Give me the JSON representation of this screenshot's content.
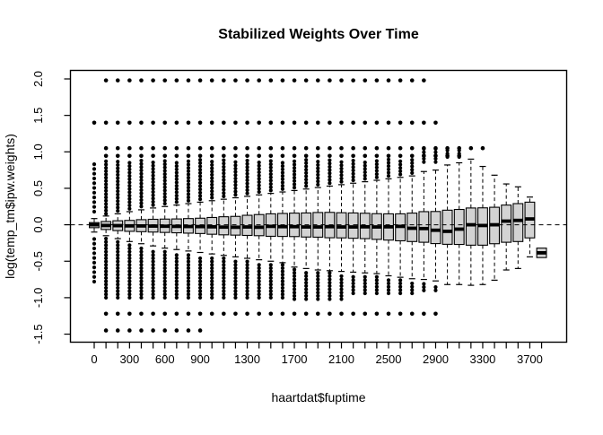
{
  "window": {
    "background": "#ffffff"
  },
  "chart_data": {
    "type": "boxplot",
    "title": "Stabilized Weights Over Time",
    "xlabel": "haartdat$fuptime",
    "ylabel": "log(temp_tm$ipw.weights)",
    "ylim": [
      -1.61,
      2.12
    ],
    "xlim": [
      -200,
      4000
    ],
    "grid": false,
    "box_fill": "#d3d3d3",
    "stroke_color": "#000000",
    "reference_line": {
      "y": 0.0,
      "style": "dashed"
    },
    "y_ticks": [
      {
        "v": 2.0,
        "label": "2.0"
      },
      {
        "v": 1.5,
        "label": "1.5"
      },
      {
        "v": 1.0,
        "label": "1.0"
      },
      {
        "v": 0.5,
        "label": "0.5"
      },
      {
        "v": 0.0,
        "label": "0.0"
      },
      {
        "v": -0.5,
        "label": "-0.5"
      },
      {
        "v": -1.0,
        "label": "-1.0"
      },
      {
        "v": -1.5,
        "label": "-1.5"
      }
    ],
    "x_tick_min": 0,
    "x_tick_max": 3800,
    "x_tick_step": 100,
    "x_labeled_ticks": [
      {
        "t": 0,
        "label": "0"
      },
      {
        "t": 300,
        "label": "300"
      },
      {
        "t": 600,
        "label": "600"
      },
      {
        "t": 900,
        "label": "900"
      },
      {
        "t": 1300,
        "label": "1300"
      },
      {
        "t": 1700,
        "label": "1700"
      },
      {
        "t": 2100,
        "label": "2100"
      },
      {
        "t": 2500,
        "label": "2500"
      },
      {
        "t": 2900,
        "label": "2900"
      },
      {
        "t": 3300,
        "label": "3300"
      },
      {
        "t": 3700,
        "label": "3700"
      }
    ],
    "boxes": [
      {
        "t": 0,
        "q1": -0.04,
        "med": 0.0,
        "q3": 0.03,
        "wlo": -0.1,
        "whi": 0.085,
        "above": [
          0.18,
          0.83
        ],
        "below": [
          -0.78,
          -0.17
        ],
        "step": 0.065
      },
      {
        "t": 100,
        "q1": -0.065,
        "med": -0.01,
        "q3": 0.045,
        "wlo": -0.15,
        "whi": 0.12,
        "above": [
          0.15,
          0.89
        ],
        "below": [
          -1.0,
          -0.19
        ]
      },
      {
        "t": 200,
        "q1": -0.08,
        "med": -0.012,
        "q3": 0.055,
        "wlo": -0.19,
        "whi": 0.15,
        "above": [
          0.19,
          0.89
        ],
        "below": [
          -1.0,
          -0.23
        ]
      },
      {
        "t": 300,
        "q1": -0.09,
        "med": -0.015,
        "q3": 0.06,
        "wlo": -0.23,
        "whi": 0.18,
        "above": [
          0.22,
          0.89
        ],
        "below": [
          -1.0,
          -0.27
        ]
      },
      {
        "t": 400,
        "q1": -0.095,
        "med": -0.016,
        "q3": 0.07,
        "wlo": -0.26,
        "whi": 0.205,
        "above": [
          0.25,
          0.89
        ],
        "below": [
          -1.0,
          -0.3
        ]
      },
      {
        "t": 500,
        "q1": -0.1,
        "med": -0.018,
        "q3": 0.075,
        "wlo": -0.29,
        "whi": 0.23,
        "above": [
          0.27,
          0.89
        ],
        "below": [
          -1.0,
          -0.33
        ]
      },
      {
        "t": 600,
        "q1": -0.105,
        "med": -0.02,
        "q3": 0.078,
        "wlo": -0.32,
        "whi": 0.25,
        "above": [
          0.29,
          0.89
        ],
        "below": [
          -1.0,
          -0.36
        ]
      },
      {
        "t": 700,
        "q1": -0.11,
        "med": -0.022,
        "q3": 0.08,
        "wlo": -0.34,
        "whi": 0.27,
        "above": [
          0.31,
          0.89
        ],
        "below": [
          -1.0,
          -0.38
        ]
      },
      {
        "t": 800,
        "q1": -0.115,
        "med": -0.024,
        "q3": 0.085,
        "wlo": -0.36,
        "whi": 0.29,
        "above": [
          0.33,
          0.89
        ],
        "below": [
          -1.0,
          -0.4
        ]
      },
      {
        "t": 900,
        "q1": -0.12,
        "med": -0.025,
        "q3": 0.09,
        "wlo": -0.38,
        "whi": 0.31,
        "above": [
          0.35,
          0.89
        ],
        "below": [
          -1.0,
          -0.42
        ]
      },
      {
        "t": 1000,
        "q1": -0.13,
        "med": -0.028,
        "q3": 0.1,
        "wlo": -0.4,
        "whi": 0.33,
        "above": [
          0.37,
          0.89
        ],
        "below": [
          -1.0,
          -0.44
        ]
      },
      {
        "t": 1100,
        "q1": -0.138,
        "med": -0.032,
        "q3": 0.11,
        "wlo": -0.42,
        "whi": 0.35,
        "above": [
          0.39,
          0.89
        ],
        "below": [
          -1.0,
          -0.46
        ]
      },
      {
        "t": 1200,
        "q1": -0.142,
        "med": -0.034,
        "q3": 0.115,
        "wlo": -0.44,
        "whi": 0.37,
        "above": [
          0.41,
          0.89
        ],
        "below": [
          -1.0,
          -0.48
        ]
      },
      {
        "t": 1300,
        "q1": -0.146,
        "med": -0.03,
        "q3": 0.13,
        "wlo": -0.46,
        "whi": 0.39,
        "above": [
          0.43,
          0.89
        ],
        "below": [
          -1.0,
          -0.5
        ]
      },
      {
        "t": 1400,
        "q1": -0.15,
        "med": -0.034,
        "q3": 0.14,
        "wlo": -0.48,
        "whi": 0.41,
        "above": [
          0.45,
          0.89
        ],
        "below": [
          -1.0,
          -0.52
        ]
      },
      {
        "t": 1500,
        "q1": -0.158,
        "med": -0.022,
        "q3": 0.15,
        "wlo": -0.5,
        "whi": 0.43,
        "above": [
          0.47,
          0.89
        ],
        "below": [
          -1.0,
          -0.54
        ]
      },
      {
        "t": 1600,
        "q1": -0.16,
        "med": -0.026,
        "q3": 0.155,
        "wlo": -0.52,
        "whi": 0.45,
        "above": [
          0.49,
          0.89
        ],
        "below": [
          -1.0,
          -0.55
        ]
      },
      {
        "t": 1700,
        "q1": -0.162,
        "med": -0.026,
        "q3": 0.16,
        "wlo": -0.58,
        "whi": 0.47,
        "above": [
          0.51,
          0.89
        ],
        "below": [
          -1.02,
          -0.61
        ]
      },
      {
        "t": 1800,
        "q1": -0.168,
        "med": -0.03,
        "q3": 0.162,
        "wlo": -0.6,
        "whi": 0.49,
        "above": [
          0.53,
          0.89
        ],
        "below": [
          -1.02,
          -0.63
        ]
      },
      {
        "t": 1900,
        "q1": -0.17,
        "med": -0.03,
        "q3": 0.168,
        "wlo": -0.62,
        "whi": 0.51,
        "above": [
          0.55,
          0.89
        ],
        "below": [
          -1.02,
          -0.65
        ]
      },
      {
        "t": 2000,
        "q1": -0.178,
        "med": -0.026,
        "q3": 0.17,
        "wlo": -0.63,
        "whi": 0.53,
        "above": [
          0.57,
          0.89
        ],
        "below": [
          -1.02,
          -0.66
        ]
      },
      {
        "t": 2100,
        "q1": -0.18,
        "med": -0.03,
        "q3": 0.165,
        "wlo": -0.64,
        "whi": 0.55,
        "above": [
          0.59,
          0.89
        ],
        "below": [
          -1.02,
          -0.67
        ]
      },
      {
        "t": 2200,
        "q1": -0.185,
        "med": -0.03,
        "q3": 0.162,
        "wlo": -0.65,
        "whi": 0.57,
        "above": [
          0.61,
          0.89
        ],
        "below": [
          -0.94,
          -0.68
        ]
      },
      {
        "t": 2300,
        "q1": -0.19,
        "med": -0.028,
        "q3": 0.158,
        "wlo": -0.66,
        "whi": 0.59,
        "above": [
          0.63,
          0.89
        ],
        "below": [
          -0.94,
          -0.69
        ]
      },
      {
        "t": 2400,
        "q1": -0.2,
        "med": -0.03,
        "q3": 0.152,
        "wlo": -0.67,
        "whi": 0.61,
        "above": [
          0.65,
          0.89
        ],
        "below": [
          -0.94,
          -0.7
        ]
      },
      {
        "t": 2500,
        "q1": -0.21,
        "med": -0.028,
        "q3": 0.15,
        "wlo": -0.7,
        "whi": 0.63,
        "above": [
          0.67,
          0.9
        ],
        "below": [
          -0.94,
          -0.73
        ]
      },
      {
        "t": 2600,
        "q1": -0.22,
        "med": -0.022,
        "q3": 0.15,
        "wlo": -0.72,
        "whi": 0.65,
        "above": [
          0.69,
          0.91
        ],
        "below": [
          -0.94,
          -0.75
        ]
      },
      {
        "t": 2700,
        "q1": -0.23,
        "med": -0.048,
        "q3": 0.16,
        "wlo": -0.74,
        "whi": 0.67,
        "above": [
          0.71,
          0.92
        ],
        "below": [
          -0.94,
          -0.77
        ]
      },
      {
        "t": 2800,
        "q1": -0.24,
        "med": -0.052,
        "q3": 0.18,
        "wlo": -0.75,
        "whi": 0.73,
        "above": [
          0.86,
          1.04
        ],
        "below": [
          -0.9,
          -0.8
        ]
      },
      {
        "t": 2900,
        "q1": -0.258,
        "med": -0.075,
        "q3": 0.182,
        "wlo": -0.77,
        "whi": 0.75,
        "above": [
          0.86,
          1.04
        ],
        "below": [
          -0.9,
          -0.82
        ]
      },
      {
        "t": 3000,
        "q1": -0.268,
        "med": -0.09,
        "q3": 0.2,
        "wlo": -0.82,
        "whi": 0.82,
        "above": [
          0.93,
          1.02
        ],
        "below": null
      },
      {
        "t": 3100,
        "q1": -0.27,
        "med": -0.06,
        "q3": 0.21,
        "wlo": -0.82,
        "whi": 0.85,
        "above": [
          0.93,
          1.02
        ],
        "below": null
      },
      {
        "t": 3200,
        "q1": -0.28,
        "med": 0.0,
        "q3": 0.23,
        "wlo": -0.83,
        "whi": 0.9,
        "above": null,
        "below": null
      },
      {
        "t": 3300,
        "q1": -0.28,
        "med": -0.01,
        "q3": 0.232,
        "wlo": -0.82,
        "whi": 0.8,
        "above": null,
        "below": null
      },
      {
        "t": 3400,
        "q1": -0.26,
        "med": 0.0,
        "q3": 0.24,
        "wlo": -0.76,
        "whi": 0.68,
        "above": null,
        "below": null
      },
      {
        "t": 3500,
        "q1": -0.24,
        "med": 0.05,
        "q3": 0.27,
        "wlo": -0.62,
        "whi": 0.56,
        "above": null,
        "below": null
      },
      {
        "t": 3600,
        "q1": -0.23,
        "med": 0.06,
        "q3": 0.29,
        "wlo": -0.6,
        "whi": 0.52,
        "above": null,
        "below": null
      },
      {
        "t": 3700,
        "q1": -0.18,
        "med": 0.08,
        "q3": 0.31,
        "wlo": -0.44,
        "whi": 0.38,
        "above": null,
        "below": null
      },
      {
        "t": 3800,
        "q1": -0.45,
        "med": -0.385,
        "q3": -0.32,
        "wlo": null,
        "whi": null,
        "above": null,
        "below": null
      }
    ],
    "outlier_rows": [
      {
        "v": 1.98,
        "from": 100,
        "to": 2800
      },
      {
        "v": 1.4,
        "from": 0,
        "to": 2900
      },
      {
        "v": 1.05,
        "from": 100,
        "to": 3300
      },
      {
        "v": 0.945,
        "from": 100,
        "to": 3100
      },
      {
        "v": -1.22,
        "from": 100,
        "to": 2900
      },
      {
        "v": -1.45,
        "from": 100,
        "to": 900
      }
    ]
  }
}
